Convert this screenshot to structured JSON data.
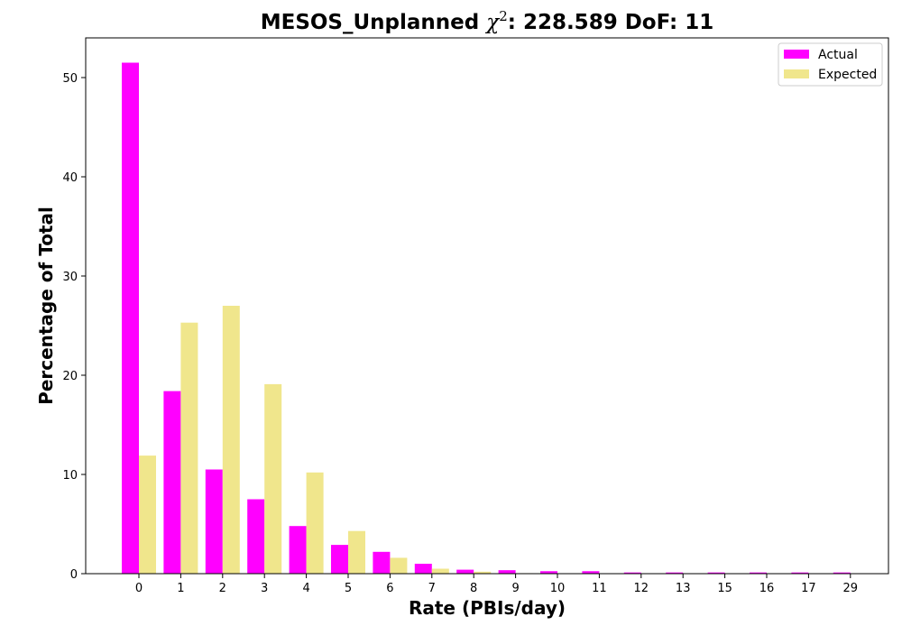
{
  "chart_data": {
    "type": "bar",
    "title_prefix": "MESOS_Unplanned ",
    "title_chi": "χ",
    "title_chi_exp": "2",
    "title_suffix": ": 228.589 DoF: 11",
    "xlabel": "Rate (PBIs/day)",
    "ylabel": "Percentage of Total",
    "categories": [
      "0",
      "1",
      "2",
      "3",
      "4",
      "5",
      "6",
      "7",
      "8",
      "9",
      "10",
      "11",
      "12",
      "13",
      "15",
      "16",
      "17",
      "29"
    ],
    "yticks": [
      0,
      10,
      20,
      30,
      40,
      50
    ],
    "ylim": [
      0,
      54
    ],
    "grid": false,
    "legend_position": "top-right",
    "series": [
      {
        "name": "Actual",
        "color": "#ff00ff",
        "values": [
          51.5,
          18.4,
          10.5,
          7.5,
          4.8,
          2.9,
          2.2,
          1.0,
          0.4,
          0.35,
          0.25,
          0.25,
          0.12,
          0.12,
          0.12,
          0.12,
          0.12,
          0.12
        ]
      },
      {
        "name": "Expected",
        "color": "#f0e68c",
        "values": [
          11.9,
          25.3,
          27.0,
          19.1,
          10.2,
          4.3,
          1.6,
          0.5,
          0.2,
          0.05,
          0.01,
          0,
          0,
          0,
          0,
          0,
          0,
          0
        ]
      }
    ]
  }
}
